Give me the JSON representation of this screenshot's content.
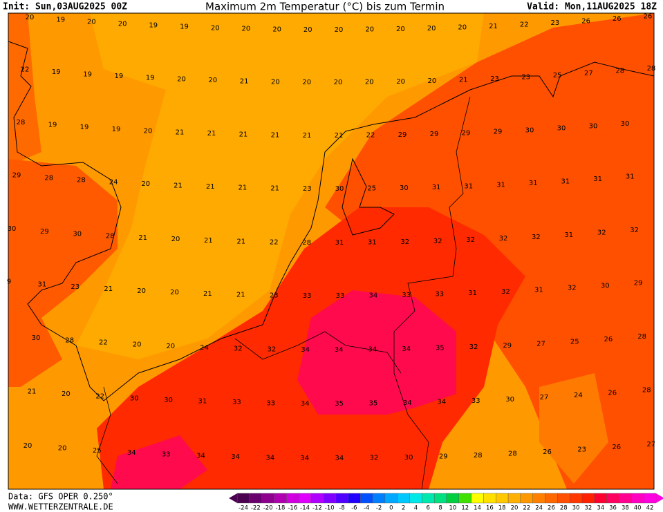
{
  "header": {
    "init": "Init: Sun,03AUG2025 00Z",
    "title": "Maximum 2m Temperatur (°C) bis zum Termin",
    "valid": "Valid: Mon,11AUG2025 18Z"
  },
  "footer": {
    "data": "Data: GFS OPER 0.250°",
    "site": "WWW.WETTERZENTRALE.DE"
  },
  "rows": [
    [
      20,
      19,
      20,
      20,
      19,
      19,
      20,
      20,
      20,
      20,
      20,
      20,
      20,
      20,
      20,
      21,
      22,
      23,
      26,
      26,
      26
    ],
    [
      22,
      19,
      19,
      19,
      19,
      20,
      20,
      21,
      20,
      20,
      20,
      20,
      20,
      20,
      21,
      23,
      23,
      25,
      27,
      28,
      28
    ],
    [
      28,
      19,
      19,
      19,
      20,
      21,
      21,
      21,
      21,
      21,
      21,
      22,
      29,
      29,
      29,
      29,
      30,
      30,
      30,
      30
    ],
    [
      29,
      28,
      28,
      24,
      20,
      21,
      21,
      21,
      21,
      23,
      30,
      25,
      30,
      31,
      31,
      31,
      31,
      31,
      31,
      31
    ],
    [
      30,
      29,
      30,
      28,
      21,
      20,
      21,
      21,
      22,
      28,
      31,
      31,
      32,
      32,
      32,
      32,
      32,
      31,
      32,
      32
    ],
    [
      9,
      31,
      23,
      21,
      20,
      20,
      21,
      21,
      23,
      33,
      33,
      34,
      33,
      33,
      31,
      32,
      31,
      32,
      30,
      29
    ],
    [
      30,
      28,
      22,
      20,
      20,
      24,
      32,
      32,
      34,
      34,
      34,
      34,
      35,
      32,
      29,
      27,
      25,
      26,
      28
    ],
    [
      21,
      20,
      22,
      30,
      30,
      31,
      33,
      33,
      34,
      35,
      35,
      34,
      34,
      33,
      30,
      27,
      24,
      26,
      28
    ],
    [
      20,
      20,
      25,
      34,
      33,
      34,
      34,
      34,
      34,
      34,
      32,
      30,
      29,
      28,
      28,
      26,
      23,
      26,
      27
    ]
  ],
  "colorbar": {
    "ticks": [
      -24,
      -22,
      -20,
      -18,
      -16,
      -14,
      -12,
      -10,
      -8,
      -6,
      -4,
      -2,
      0,
      2,
      4,
      6,
      8,
      10,
      12,
      14,
      16,
      18,
      20,
      22,
      24,
      26,
      28,
      30,
      32,
      34,
      36,
      38,
      40,
      42
    ],
    "colors": [
      "#4b0050",
      "#6a006e",
      "#8e008e",
      "#b000b0",
      "#d000e0",
      "#e000ff",
      "#b000ff",
      "#8000ff",
      "#5000ff",
      "#2000ff",
      "#0050ff",
      "#0080ff",
      "#00a8ff",
      "#00c8ff",
      "#00e8e8",
      "#00e8b0",
      "#00e080",
      "#00d040",
      "#40e000",
      "#ffff00",
      "#ffe000",
      "#ffc800",
      "#ffb000",
      "#ff9800",
      "#ff8000",
      "#ff6800",
      "#ff5000",
      "#ff3800",
      "#ff2000",
      "#ff0030",
      "#ff0060",
      "#ff0090",
      "#ff00c0",
      "#ff00e0"
    ]
  }
}
